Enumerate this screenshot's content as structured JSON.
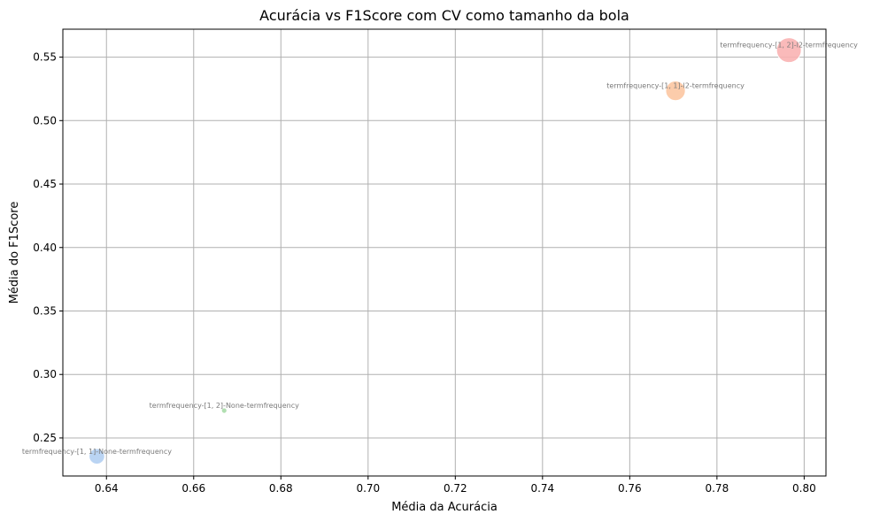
{
  "chart_data": {
    "type": "scatter",
    "title": "Acurácia vs F1Score com CV como tamanho da bola",
    "xlabel": "Média da Acurácia",
    "ylabel": "Média do F1Score",
    "xlim": [
      0.63,
      0.805
    ],
    "ylim": [
      0.22,
      0.572
    ],
    "xticks": [
      0.64,
      0.66,
      0.68,
      0.7,
      0.72,
      0.74,
      0.76,
      0.78,
      0.8
    ],
    "xtick_labels": [
      "0.64",
      "0.66",
      "0.68",
      "0.70",
      "0.72",
      "0.74",
      "0.76",
      "0.78",
      "0.80"
    ],
    "yticks": [
      0.25,
      0.3,
      0.35,
      0.4,
      0.45,
      0.5,
      0.55
    ],
    "ytick_labels": [
      "0.25",
      "0.30",
      "0.35",
      "0.40",
      "0.45",
      "0.50",
      "0.55"
    ],
    "grid": true,
    "bubble_size_meaning": "CV",
    "points": [
      {
        "label": "termfrequency-[1, 2]-l2-termfrequency",
        "x": 0.7965,
        "y": 0.5555,
        "size": 1.0,
        "color": "#f9b3b3"
      },
      {
        "label": "termfrequency-[1, 1]-l2-termfrequency",
        "x": 0.7705,
        "y": 0.5235,
        "size": 0.75,
        "color": "#fcc7a2"
      },
      {
        "label": "termfrequency-[1, 2]-None-termfrequency",
        "x": 0.667,
        "y": 0.2715,
        "size": 0.05,
        "color": "#a8dba8"
      },
      {
        "label": "termfrequency-[1, 1]-None-termfrequency",
        "x": 0.6378,
        "y": 0.2355,
        "size": 0.55,
        "color": "#b3cff2"
      }
    ]
  }
}
